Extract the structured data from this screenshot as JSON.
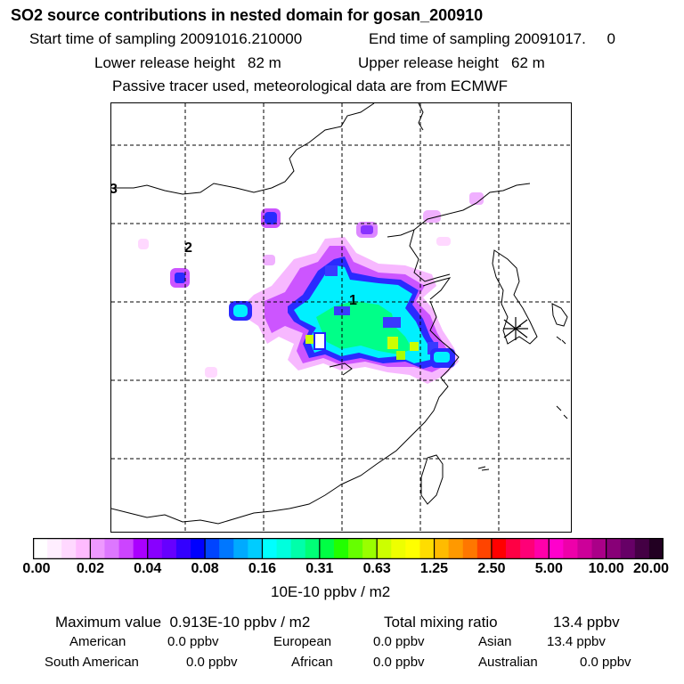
{
  "header": {
    "title": "SO2 source contributions in nested domain for gosan_200910",
    "start_label": "Start time of sampling 20091016.210000",
    "end_label": "End time of sampling 20091017.     0",
    "lower_label": "Lower release height   82 m",
    "upper_label": "Upper release height   62 m",
    "tracer_label": "Passive tracer used, meteorological data are from ECMWF"
  },
  "chart_data": {
    "type": "heatmap",
    "title": "SO2 source contributions in nested domain for gosan_200910",
    "units": "10E-10 ppbv / m2",
    "colorbar_ticks": [
      "0.00",
      "0.02",
      "0.04",
      "0.08",
      "0.16",
      "0.31",
      "0.63",
      "1.25",
      "2.50",
      "5.00",
      "10.00",
      "20.00"
    ],
    "colorbar_colors": [
      "#ffffff",
      "#ffeeff",
      "#ffd8ff",
      "#ffbbff",
      "#ee99ff",
      "#dd77ff",
      "#cc44ff",
      "#aa00ff",
      "#8800ff",
      "#6600ff",
      "#3300ff",
      "#0000ff",
      "#0044ff",
      "#0077ff",
      "#00aaff",
      "#00ccff",
      "#00ffff",
      "#00ffdd",
      "#00ffaa",
      "#00ff77",
      "#00ff44",
      "#22ff00",
      "#66ff00",
      "#99ff00",
      "#ccff00",
      "#eeff00",
      "#ffff00",
      "#ffdd00",
      "#ffbb00",
      "#ff9900",
      "#ff7700",
      "#ff4400",
      "#ff0000",
      "#ff0044",
      "#ff0077",
      "#ff00aa",
      "#ff00cc",
      "#ee00aa",
      "#cc0099",
      "#aa0088",
      "#880077",
      "#660066",
      "#440044",
      "#220022"
    ],
    "receptor_marker": "gosan",
    "region_labels": [
      "1",
      "2",
      "3"
    ],
    "grid": true
  },
  "footer": {
    "max_value_label": "Maximum value  0.913E-10 ppbv / m2",
    "total_label": "Total mixing ratio",
    "total_value": "13.4 ppbv",
    "american_label": "American",
    "american_value": "0.0 ppbv",
    "european_label": "European",
    "european_value": "0.0 ppbv",
    "asian_label": "Asian",
    "asian_value": "13.4 ppbv",
    "south_american_label": "South American",
    "south_american_value": "0.0 ppbv",
    "african_label": "African",
    "african_value": "0.0 ppbv",
    "australian_label": "Australian",
    "australian_value": "0.0 ppbv"
  }
}
